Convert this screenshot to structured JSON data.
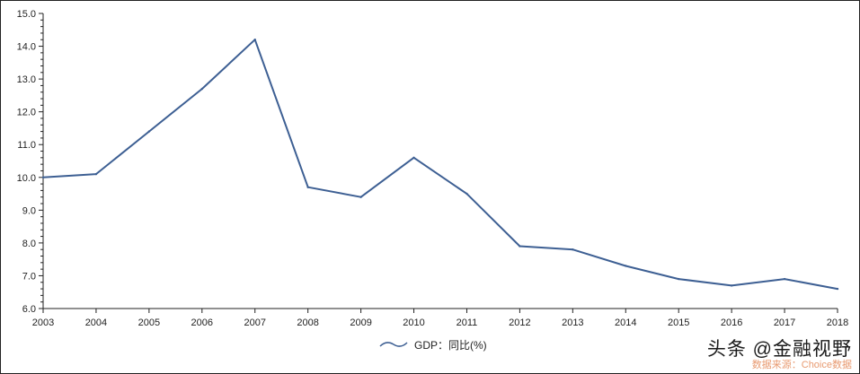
{
  "chart_data": {
    "type": "line",
    "x": [
      "2003",
      "2004",
      "2005",
      "2006",
      "2007",
      "2008",
      "2009",
      "2010",
      "2011",
      "2012",
      "2013",
      "2014",
      "2015",
      "2016",
      "2017",
      "2018"
    ],
    "series": [
      {
        "name": "GDP：同比(%)",
        "values": [
          10.0,
          10.1,
          11.4,
          12.7,
          14.2,
          9.7,
          9.4,
          10.6,
          9.5,
          7.9,
          7.8,
          7.3,
          6.9,
          6.7,
          6.9,
          6.6
        ],
        "color": "#3d5f93"
      }
    ],
    "ylim": [
      6.0,
      15.0
    ],
    "yticks": [
      "6.0",
      "7.0",
      "8.0",
      "9.0",
      "10.0",
      "11.0",
      "12.0",
      "13.0",
      "14.0",
      "15.0"
    ],
    "grid": false,
    "legend_position": "bottom-center"
  },
  "legend": {
    "label": "GDP：同比(%)"
  },
  "watermark": {
    "main": "头条 @金融视野",
    "source": "数据来源：Choice数据"
  }
}
